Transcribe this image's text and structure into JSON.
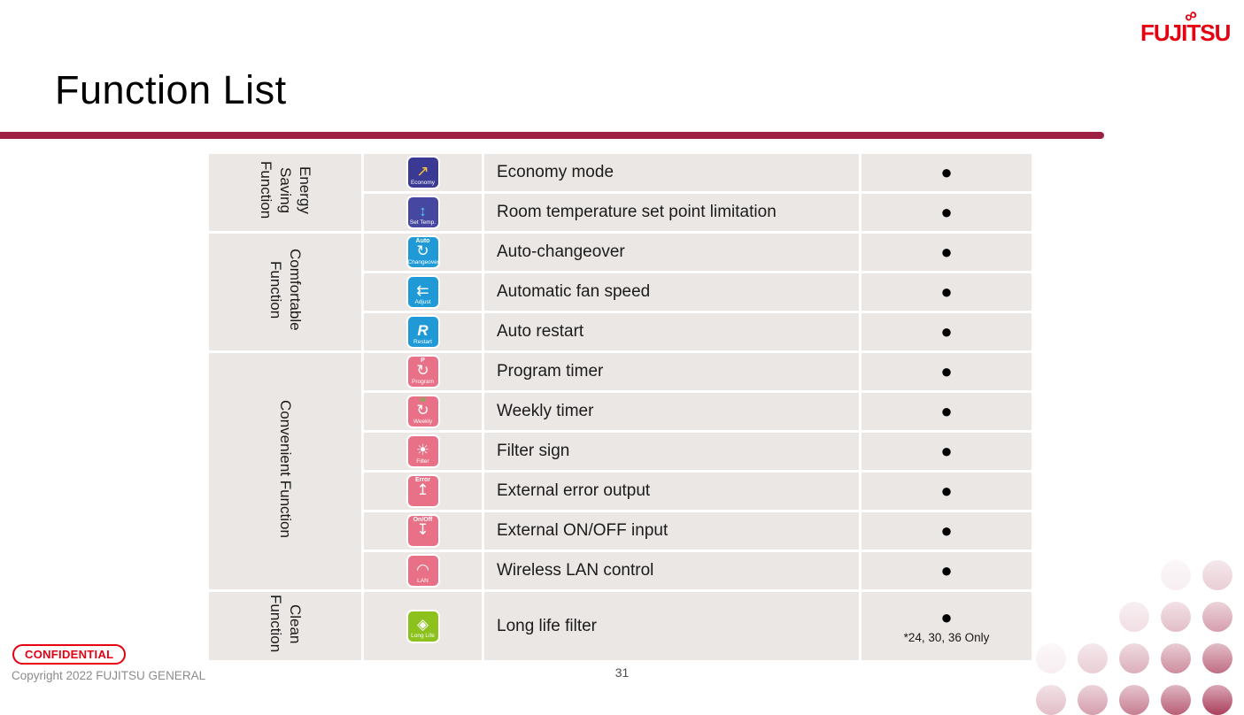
{
  "brand": {
    "logo_text": "FUJITSU",
    "infinity_glyph": "∞",
    "logo_color": "#e60012"
  },
  "header": {
    "title": "Function List",
    "rule_color": "#9e2043"
  },
  "footer": {
    "confidential": "CONFIDENTIAL",
    "copyright": "Copyright 2022 FUJITSU GENERAL",
    "page_number": "31"
  },
  "table": {
    "cell_bg": "#ebe7e5",
    "groups": [
      {
        "label": "Energy\nSaving\nFunction",
        "rows": [
          {
            "icon": {
              "name": "economy-icon",
              "bg": "#3a3a95",
              "glyph": "↗",
              "glyph_color": "#f5c53a",
              "label": "Economy"
            },
            "function": "Economy mode",
            "available": "●"
          },
          {
            "icon": {
              "name": "set-temp-icon",
              "bg": "#4547a0",
              "glyph": "↕",
              "glyph_color": "#54c8ea",
              "label": "Set Temp."
            },
            "function": "Room temperature set point limitation",
            "available": "●"
          }
        ]
      },
      {
        "label": "Comfortable\nFunction",
        "rows": [
          {
            "icon": {
              "name": "auto-changeover-icon",
              "bg": "#1f9ad6",
              "glyph": "↻",
              "glyph_color": "#ffffff",
              "corner": "Auto",
              "corner_color": "#ffffff",
              "label": "Changeover"
            },
            "function": "Auto-changeover",
            "available": "●"
          },
          {
            "icon": {
              "name": "auto-fan-speed-icon",
              "bg": "#1f9ad6",
              "glyph": "⇇",
              "glyph_color": "#ffffff",
              "label": "Adjust"
            },
            "function": "Automatic fan speed",
            "available": "●"
          },
          {
            "icon": {
              "name": "auto-restart-icon",
              "bg": "#1f9ad6",
              "glyph": "R",
              "glyph_color": "#ffffff",
              "italic": true,
              "label": "Restart"
            },
            "function": "Auto restart",
            "available": "●"
          }
        ]
      },
      {
        "label": "Convenient Function",
        "rows": [
          {
            "icon": {
              "name": "program-timer-icon",
              "bg": "#e87187",
              "glyph": "↻",
              "glyph_color": "#ffffff",
              "corner": "P",
              "corner_color": "#ffffff",
              "label": "Program"
            },
            "function": "Program timer",
            "available": "●"
          },
          {
            "icon": {
              "name": "weekly-timer-icon",
              "bg": "#e87187",
              "glyph": "↻",
              "glyph_color": "#ffffff",
              "corner": "W",
              "corner_color": "#6abf4b",
              "label": "Weekly"
            },
            "function": "Weekly timer",
            "available": "●"
          },
          {
            "icon": {
              "name": "filter-sign-icon",
              "bg": "#e87187",
              "glyph": "☀",
              "glyph_color": "#ffffff",
              "label": "Filter"
            },
            "function": "Filter sign",
            "available": "●"
          },
          {
            "icon": {
              "name": "external-error-output-icon",
              "bg": "#e87187",
              "glyph": "↥",
              "glyph_color": "#ffffff",
              "corner": "Error",
              "corner_color": "#ffffff",
              "label": ""
            },
            "function": "External error output",
            "available": "●"
          },
          {
            "icon": {
              "name": "external-on-off-input-icon",
              "bg": "#e87187",
              "glyph": "↧",
              "glyph_color": "#ffffff",
              "corner": "On/Off",
              "corner_color": "#ffffff",
              "label": ""
            },
            "function": "External ON/OFF input",
            "available": "●"
          },
          {
            "icon": {
              "name": "wireless-lan-icon",
              "bg": "#e87187",
              "glyph": "◠",
              "glyph_color": "#ffffff",
              "label": "LAN"
            },
            "function": "Wireless LAN control",
            "available": "●"
          }
        ]
      },
      {
        "label": "Clean\nFunction",
        "rows": [
          {
            "icon": {
              "name": "long-life-filter-icon",
              "bg": "#8cc11e",
              "glyph": "◈",
              "glyph_color": "#ffffff",
              "label": "Long Life"
            },
            "function": "Long life filter",
            "available": "●",
            "note": "*24, 30, 36 Only",
            "tall": true
          }
        ]
      }
    ]
  },
  "decoration": {
    "dot_rgb": [
      158,
      31,
      66
    ]
  }
}
